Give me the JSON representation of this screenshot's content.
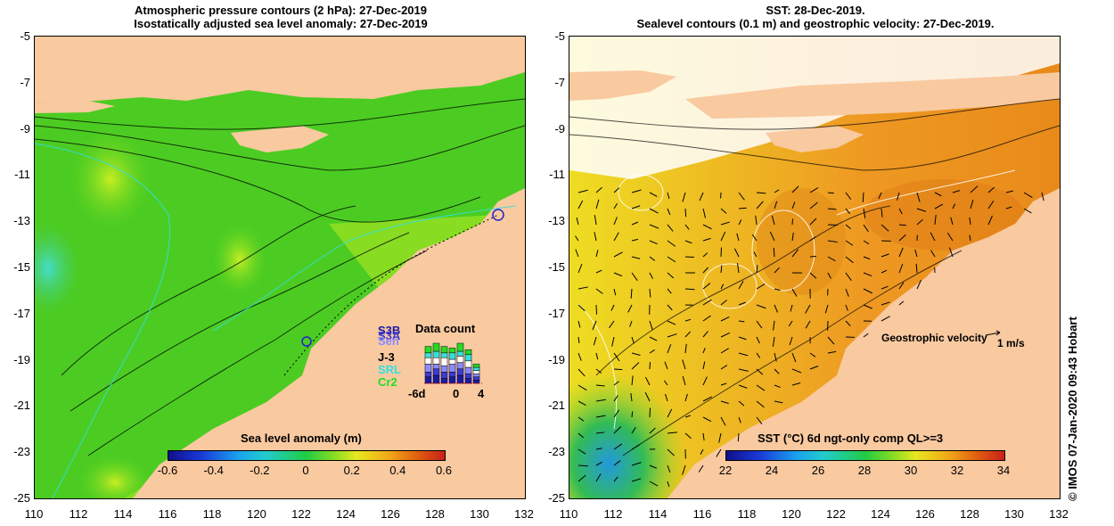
{
  "left_panel": {
    "title_line1": "Atmospheric pressure contours (2 hPa): 27-Dec-2019",
    "title_line2": "Isostatically adjusted sea level anomaly: 27-Dec-2019",
    "y_ticks": [
      "-5",
      "-7",
      "-9",
      "-11",
      "-13",
      "-15",
      "-17",
      "-19",
      "-21",
      "-23",
      "-25"
    ],
    "x_ticks": [
      "110",
      "112",
      "114",
      "116",
      "118",
      "120",
      "122",
      "124",
      "126",
      "128",
      "130",
      "132"
    ],
    "colorbar_label": "Sea level anomaly (m)",
    "colorbar_ticks": [
      "-0.6",
      "-0.4",
      "-0.2",
      "0",
      "0.2",
      "0.4",
      "0.6"
    ],
    "data_count": {
      "title": "Data count",
      "satellites": [
        {
          "name": "S3B",
          "color": "#1a1aa8"
        },
        {
          "name": "S3A",
          "color": "#3a3ad8"
        },
        {
          "name": "Sen",
          "color": "#8a8aff"
        },
        {
          "name": "J-3",
          "color": "#000000"
        },
        {
          "name": "SRL",
          "color": "#33e0e0"
        },
        {
          "name": "Cr2",
          "color": "#22dd22"
        }
      ],
      "x_ticks": [
        "-6d",
        "0",
        "4"
      ]
    }
  },
  "right_panel": {
    "title_line1": "SST: 28-Dec-2019.",
    "title_line2": "Sealevel contours (0.1 m) and geostrophic velocity: 27-Dec-2019.",
    "y_ticks": [
      "-5",
      "-7",
      "-9",
      "-11",
      "-13",
      "-15",
      "-17",
      "-19",
      "-21",
      "-23",
      "-25"
    ],
    "x_ticks": [
      "110",
      "112",
      "114",
      "116",
      "118",
      "120",
      "122",
      "124",
      "126",
      "128",
      "130",
      "132"
    ],
    "colorbar_label": "SST (°C) 6d ngt-only comp QL>=3",
    "colorbar_ticks": [
      "22",
      "24",
      "26",
      "28",
      "30",
      "32",
      "34"
    ],
    "velocity_label": "Geostrophic velocity",
    "velocity_unit": "1 m/s"
  },
  "copyright": "© IMOS 07-Jan-2020 09:43 Hobart",
  "colors": {
    "land": "#f9c9a0",
    "ocean_green": "#44cc22",
    "ocean_bright": "#88dd22",
    "sst_orange": "#ee9922",
    "sst_green": "#33bb33"
  }
}
